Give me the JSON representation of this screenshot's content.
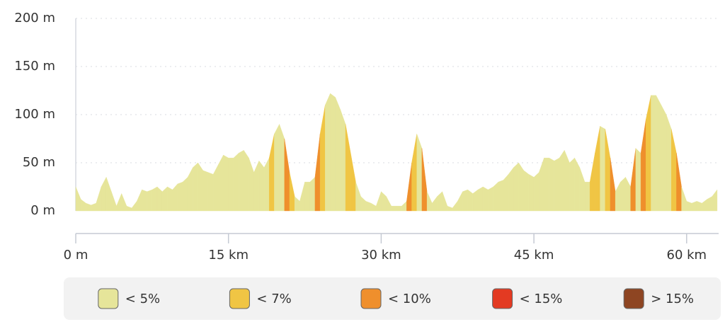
{
  "chart_data": {
    "type": "area",
    "x": [
      0,
      0.5,
      1,
      1.5,
      2,
      2.5,
      3,
      3.5,
      4,
      4.5,
      5,
      5.5,
      6,
      6.5,
      7,
      7.5,
      8,
      8.5,
      9,
      9.5,
      10,
      10.5,
      11,
      11.5,
      12,
      12.5,
      13,
      13.5,
      14,
      14.5,
      15,
      15.5,
      16,
      16.5,
      17,
      17.5,
      18,
      18.5,
      19,
      19.5,
      20,
      20.5,
      21,
      21.5,
      22,
      22.5,
      23,
      23.5,
      24,
      24.5,
      25,
      25.5,
      26,
      26.5,
      27,
      27.5,
      28,
      28.5,
      29,
      29.5,
      30,
      30.5,
      31,
      31.5,
      32,
      32.5,
      33,
      33.5,
      34,
      34.5,
      35,
      35.5,
      36,
      36.5,
      37,
      37.5,
      38,
      38.5,
      39,
      39.5,
      40,
      40.5,
      41,
      41.5,
      42,
      42.5,
      43,
      43.5,
      44,
      44.5,
      45,
      45.5,
      46,
      46.5,
      47,
      47.5,
      48,
      48.5,
      49,
      49.5,
      50,
      50.5,
      51,
      51.5,
      52,
      52.5,
      53,
      53.5,
      54,
      54.5,
      55,
      55.5,
      56,
      56.5,
      57,
      57.5,
      58,
      58.5,
      59,
      59.5,
      60,
      60.5,
      61,
      61.5,
      62,
      62.5,
      63
    ],
    "values": [
      25,
      12,
      8,
      6,
      8,
      25,
      35,
      20,
      5,
      18,
      5,
      3,
      10,
      22,
      20,
      22,
      25,
      20,
      25,
      22,
      28,
      30,
      35,
      45,
      50,
      42,
      40,
      38,
      48,
      58,
      55,
      55,
      60,
      63,
      55,
      40,
      52,
      45,
      55,
      80,
      90,
      75,
      40,
      15,
      10,
      30,
      30,
      35,
      80,
      110,
      122,
      118,
      105,
      90,
      60,
      30,
      15,
      10,
      8,
      5,
      20,
      15,
      5,
      5,
      5,
      10,
      50,
      80,
      65,
      20,
      8,
      15,
      20,
      5,
      3,
      10,
      20,
      22,
      18,
      22,
      25,
      22,
      25,
      30,
      32,
      38,
      45,
      50,
      42,
      38,
      35,
      40,
      55,
      55,
      52,
      55,
      63,
      50,
      55,
      45,
      30,
      30,
      60,
      88,
      85,
      55,
      20,
      30,
      35,
      25,
      65,
      60,
      95,
      120,
      120,
      110,
      100,
      85,
      60,
      25,
      10,
      8,
      10,
      8,
      12,
      15,
      22
    ],
    "xlim": [
      0,
      63.2
    ],
    "ylim": [
      0,
      200
    ],
    "xticks": [
      {
        "value": 0,
        "label": "0 m"
      },
      {
        "value": 15,
        "label": "15 km"
      },
      {
        "value": 30,
        "label": "30 km"
      },
      {
        "value": 45,
        "label": "45 km"
      },
      {
        "value": 60,
        "label": "60 km"
      }
    ],
    "yticks": [
      {
        "value": 0,
        "label": "0 m"
      },
      {
        "value": 50,
        "label": "50 m"
      },
      {
        "value": 100,
        "label": "100 m"
      },
      {
        "value": 150,
        "label": "150 m"
      },
      {
        "value": 200,
        "label": "200 m"
      }
    ],
    "grid": true,
    "legend": [
      {
        "label": "< 5%",
        "color": "#e6e59a",
        "max": 5
      },
      {
        "label": "< 7%",
        "color": "#f0c544",
        "max": 7
      },
      {
        "label": "< 10%",
        "color": "#ef8f2c",
        "max": 10
      },
      {
        "label": "< 15%",
        "color": "#e33a22",
        "max": 15
      },
      {
        "label": "> 15%",
        "color": "#8e4522"
      }
    ]
  }
}
